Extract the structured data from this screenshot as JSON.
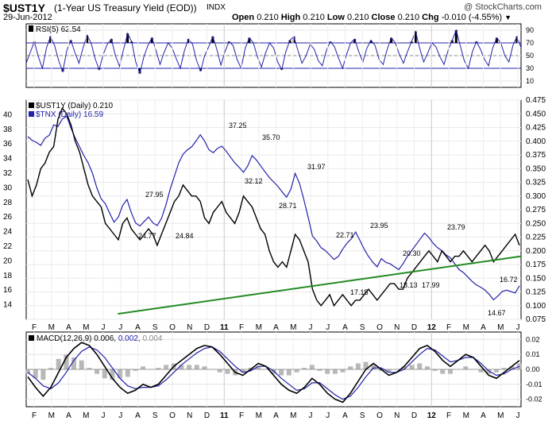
{
  "header": {
    "symbol": "$UST1Y",
    "description": "(1-Year US Treasury Yield (EOD))",
    "exchange": "INDX",
    "date": "29-Jun-2012",
    "watermark": "@ StockCharts.com",
    "open_label": "Open",
    "open": "0.210",
    "high_label": "High",
    "high": "0.210",
    "low_label": "Low",
    "low": "0.210",
    "close_label": "Close",
    "close": "0.210",
    "chg_label": "Chg",
    "chg": "-0.010 (-4.55%)"
  },
  "chart_data": [
    {
      "type": "line",
      "panel": "rsi",
      "legend": "RSI(5) 62.54",
      "ylim": [
        0,
        100
      ],
      "yticks": [
        10,
        30,
        50,
        70,
        90
      ],
      "reference_lines": [
        30,
        70
      ],
      "series": [
        {
          "name": "RSI(5)",
          "color": "#2222aa",
          "values": [
            38,
            55,
            72,
            48,
            30,
            62,
            80,
            66,
            42,
            25,
            58,
            74,
            55,
            38,
            62,
            82,
            70,
            45,
            28,
            52,
            68,
            76,
            50,
            33,
            60,
            85,
            72,
            40,
            22,
            48,
            66,
            78,
            58,
            36,
            55,
            70,
            62,
            45,
            30,
            58,
            76,
            68,
            42,
            26,
            50,
            64,
            80,
            60,
            35,
            56,
            72,
            66,
            44,
            30,
            62,
            78,
            70,
            48,
            32,
            54,
            70,
            62,
            40,
            28,
            56,
            74,
            80,
            58,
            38,
            50,
            68,
            60,
            42,
            34,
            58,
            72,
            64,
            46,
            30,
            52,
            70,
            76,
            56,
            40,
            62,
            74,
            66,
            44,
            36,
            60,
            78,
            70,
            52,
            38,
            56,
            72,
            88,
            62,
            40,
            54,
            70,
            64,
            48,
            36,
            58,
            74,
            90,
            66,
            42,
            30,
            56,
            72,
            60,
            44,
            34,
            62,
            78,
            70,
            50,
            40,
            66,
            80,
            62.54
          ]
        }
      ]
    },
    {
      "type": "line",
      "panel": "price",
      "legend": [
        {
          "label": "$UST1Y (Daily) 0.210",
          "color": "#000000"
        },
        {
          "label": "$TNX (Daily) 16.59",
          "color": "#2222aa"
        }
      ],
      "x_ticks": [
        "F",
        "M",
        "A",
        "M",
        "J",
        "J",
        "A",
        "S",
        "O",
        "N",
        "D",
        "11",
        "F",
        "M",
        "A",
        "M",
        "J",
        "J",
        "A",
        "S",
        "O",
        "N",
        "D",
        "12",
        "F",
        "M",
        "A",
        "M",
        "J"
      ],
      "left_axis": {
        "ylim": [
          12,
          42
        ],
        "ticks": [
          14,
          16,
          18,
          20,
          22,
          24,
          26,
          28,
          30,
          32,
          34,
          36,
          38,
          40
        ]
      },
      "right_axis": {
        "ylim": [
          0.075,
          0.475
        ],
        "ticks": [
          "0.075",
          "0.100",
          "0.125",
          "0.150",
          "0.175",
          "0.200",
          "0.225",
          "0.250",
          "0.275",
          "0.300",
          "0.325",
          "0.350",
          "0.375",
          "0.400",
          "0.425",
          "0.450",
          "0.475"
        ]
      },
      "series": [
        {
          "name": "$TNX (Daily)",
          "axis": "left",
          "color": "#2222aa",
          "values": [
            37,
            36.5,
            36.2,
            35.8,
            36.8,
            37.2,
            38.6,
            38.4,
            39.4,
            39.8,
            38.2,
            36.8,
            35.6,
            34.4,
            33.4,
            32.0,
            30.0,
            28.5,
            27.8,
            26.5,
            25.3,
            26.0,
            27.6,
            28.4,
            26.6,
            25.2,
            24.77,
            25.4,
            26.0,
            25.2,
            24.84,
            25.8,
            27.6,
            29.8,
            31.6,
            33.4,
            34.6,
            35.2,
            35.6,
            36.4,
            37.25,
            36.4,
            35.2,
            34.8,
            35.4,
            35.7,
            35.0,
            34.2,
            33.4,
            32.8,
            32.12,
            33.0,
            34.4,
            33.8,
            33.0,
            32.2,
            31.4,
            30.8,
            30.2,
            29.4,
            28.71,
            29.8,
            31.97,
            30.6,
            28.4,
            26.0,
            23.4,
            22.71,
            21.8,
            21.4,
            20.8,
            20.2,
            20.6,
            21.6,
            22.4,
            23.0,
            23.95,
            22.8,
            21.6,
            20.6,
            19.8,
            19.2,
            20.3,
            19.8,
            19.6,
            19.2,
            18.8,
            19.6,
            20.6,
            21.4,
            22.2,
            23.0,
            23.79,
            23.2,
            22.4,
            21.8,
            21.4,
            20.8,
            20.4,
            19.6,
            18.8,
            18.4,
            17.8,
            17.2,
            16.72,
            16.4,
            16.0,
            15.4,
            14.67,
            15.2,
            15.8,
            16.0,
            15.8,
            15.6,
            16.59
          ]
        },
        {
          "name": "$UST1Y (Daily)",
          "axis": "right",
          "color": "#000000",
          "values": [
            0.33,
            0.3,
            0.32,
            0.35,
            0.36,
            0.38,
            0.39,
            0.44,
            0.46,
            0.45,
            0.43,
            0.4,
            0.38,
            0.35,
            0.32,
            0.3,
            0.29,
            0.28,
            0.25,
            0.24,
            0.23,
            0.22,
            0.25,
            0.26,
            0.24,
            0.23,
            0.22,
            0.23,
            0.24,
            0.23,
            0.21,
            0.23,
            0.25,
            0.27,
            0.29,
            0.3,
            0.32,
            0.31,
            0.3,
            0.3,
            0.29,
            0.26,
            0.25,
            0.27,
            0.28,
            0.29,
            0.27,
            0.26,
            0.25,
            0.27,
            0.3,
            0.29,
            0.28,
            0.26,
            0.24,
            0.23,
            0.2,
            0.18,
            0.17,
            0.18,
            0.17,
            0.2,
            0.23,
            0.22,
            0.2,
            0.18,
            0.13,
            0.11,
            0.1,
            0.11,
            0.12,
            0.1,
            0.11,
            0.12,
            0.11,
            0.1,
            0.11,
            0.11,
            0.12,
            0.13,
            0.12,
            0.11,
            0.12,
            0.13,
            0.14,
            0.14,
            0.13,
            0.13,
            0.15,
            0.16,
            0.17,
            0.18,
            0.19,
            0.2,
            0.19,
            0.18,
            0.2,
            0.19,
            0.18,
            0.19,
            0.19,
            0.2,
            0.19,
            0.18,
            0.19,
            0.2,
            0.21,
            0.2,
            0.18,
            0.19,
            0.2,
            0.21,
            0.22,
            0.23,
            0.21
          ]
        }
      ],
      "trendline": {
        "color": "#228b22",
        "from": [
          0.185,
          0.085
        ],
        "to": [
          1.0,
          0.19
        ]
      },
      "annotations": [
        "27.95",
        "24.77",
        "24.84",
        "37.25",
        "32.12",
        "35.70",
        "28.71",
        "31.97",
        "22.71",
        "23.95",
        "17.15",
        "20.30",
        "18.13",
        "17.99",
        "23.79",
        "16.72",
        "14.67"
      ]
    },
    {
      "type": "line",
      "panel": "macd",
      "legend": {
        "label": "MACD(12,26,9)",
        "macd": "0.006",
        "signal": "0.002",
        "hist": "0.004"
      },
      "ylim": [
        -0.025,
        0.025
      ],
      "yticks": [
        "0.02",
        "0.01",
        "0.00",
        "-0.01",
        "-0.02"
      ],
      "x_ticks": [
        "F",
        "M",
        "A",
        "M",
        "J",
        "J",
        "A",
        "S",
        "O",
        "N",
        "D",
        "11",
        "F",
        "M",
        "A",
        "M",
        "J",
        "J",
        "A",
        "S",
        "O",
        "N",
        "D",
        "12",
        "F",
        "M",
        "A",
        "M",
        "J"
      ],
      "series": [
        {
          "name": "MACD",
          "color": "#000000",
          "values": [
            -0.005,
            -0.012,
            -0.018,
            -0.012,
            -0.002,
            0.008,
            0.014,
            0.018,
            0.016,
            0.01,
            0.002,
            -0.006,
            -0.012,
            -0.016,
            -0.014,
            -0.01,
            -0.012,
            -0.01,
            -0.004,
            0.002,
            0.006,
            0.01,
            0.014,
            0.016,
            0.015,
            0.01,
            0.004,
            -0.002,
            -0.004,
            0.0,
            0.004,
            0.002,
            -0.004,
            -0.01,
            -0.014,
            -0.016,
            -0.012,
            -0.006,
            -0.01,
            -0.016,
            -0.02,
            -0.022,
            -0.016,
            -0.008,
            0.0,
            0.004,
            0.0,
            -0.004,
            -0.002,
            0.002,
            0.008,
            0.014,
            0.016,
            0.012,
            0.006,
            0.002,
            0.006,
            0.01,
            0.008,
            0.002,
            -0.004,
            -0.006,
            -0.002,
            0.002,
            0.006
          ]
        },
        {
          "name": "Signal",
          "color": "#2222aa",
          "values": [
            -0.002,
            -0.006,
            -0.011,
            -0.013,
            -0.009,
            -0.002,
            0.006,
            0.012,
            0.015,
            0.013,
            0.008,
            0.001,
            -0.006,
            -0.011,
            -0.013,
            -0.012,
            -0.012,
            -0.011,
            -0.007,
            -0.002,
            0.003,
            0.007,
            0.011,
            0.014,
            0.015,
            0.012,
            0.007,
            0.002,
            -0.002,
            -0.001,
            0.002,
            0.002,
            -0.001,
            -0.006,
            -0.01,
            -0.014,
            -0.013,
            -0.009,
            -0.009,
            -0.013,
            -0.017,
            -0.02,
            -0.018,
            -0.012,
            -0.005,
            0.001,
            0.001,
            -0.002,
            -0.002,
            0.0,
            0.005,
            0.01,
            0.014,
            0.013,
            0.009,
            0.005,
            0.006,
            0.008,
            0.008,
            0.004,
            -0.001,
            -0.004,
            -0.003,
            0.0,
            0.002
          ]
        }
      ]
    }
  ]
}
